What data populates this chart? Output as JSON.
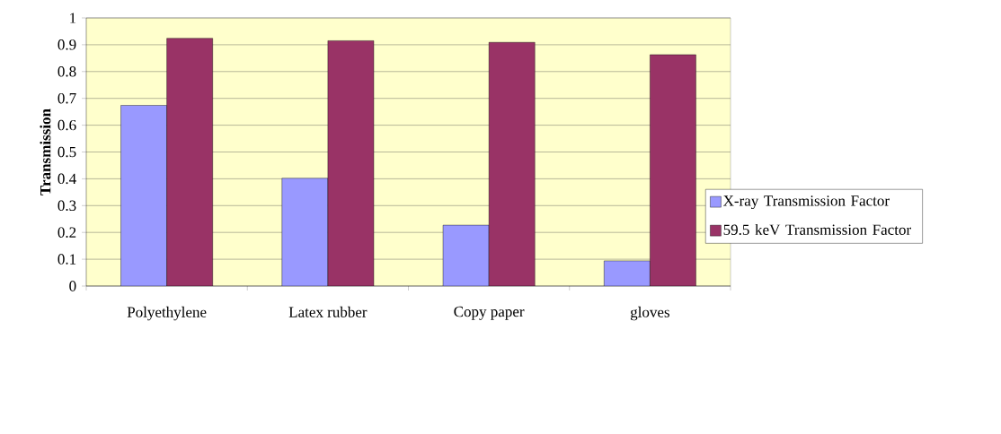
{
  "chart_data": {
    "type": "bar",
    "ylabel": "Transmission",
    "categories": [
      "Polyethylene",
      "Latex rubber",
      "Copy paper",
      "gloves"
    ],
    "series": [
      {
        "name": "X-ray Transmission Factor",
        "color": "#9999ff",
        "values": [
          0.674,
          0.402,
          0.227,
          0.094
        ]
      },
      {
        "name": "59.5 keV Transmission Factor",
        "color": "#993366",
        "values": [
          0.924,
          0.915,
          0.909,
          0.863
        ]
      }
    ],
    "ylim": [
      0,
      1
    ],
    "yticks": [
      0,
      0.1,
      0.2,
      0.3,
      0.4,
      0.5,
      0.6,
      0.7,
      0.8,
      0.9,
      1
    ],
    "grid": "y",
    "legend": "right"
  }
}
